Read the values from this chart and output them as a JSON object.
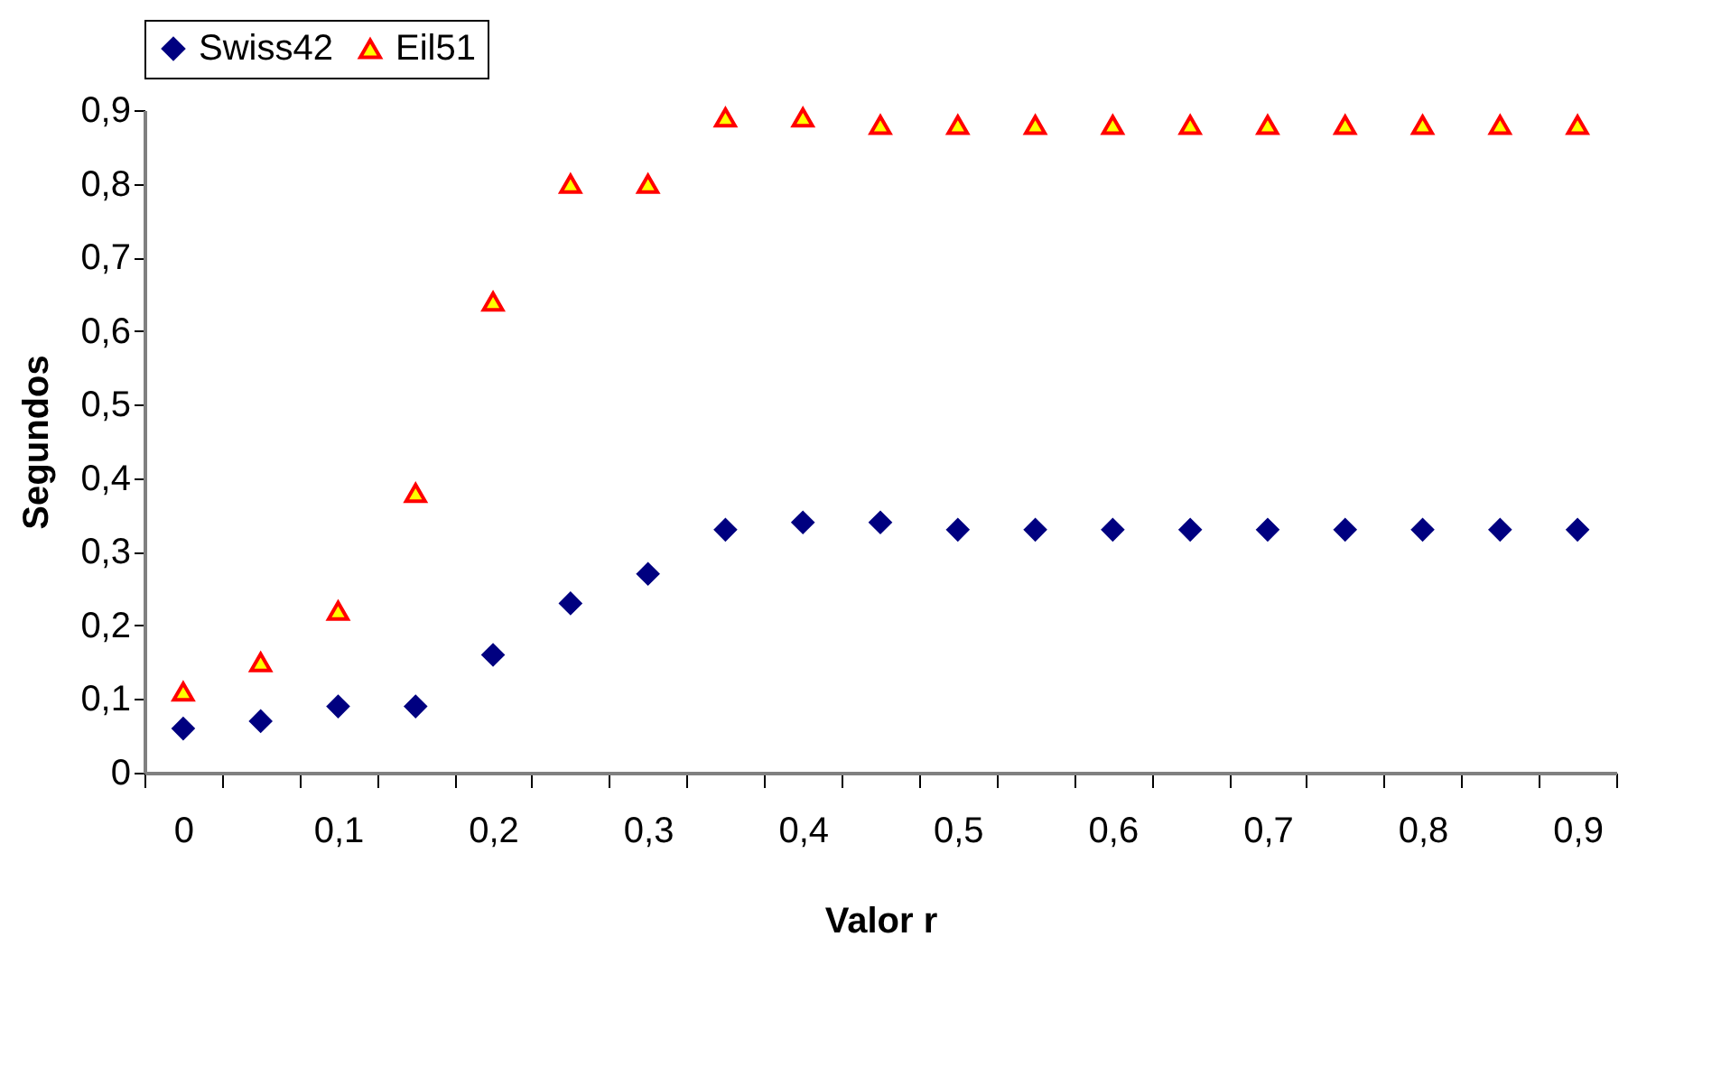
{
  "chart_data": {
    "type": "scatter",
    "xlabel": "Valor r",
    "ylabel": "Segundos",
    "categories": [
      "0",
      null,
      "0,1",
      null,
      "0,2",
      null,
      "0,3",
      null,
      "0,4",
      null,
      "0,5",
      null,
      "0,6",
      null,
      "0,7",
      null,
      "0,8",
      null,
      "0,9"
    ],
    "series": [
      {
        "name": "Swiss42",
        "color": "#000080",
        "marker": "diamond",
        "values": [
          0.06,
          0.07,
          0.09,
          0.09,
          0.16,
          0.23,
          0.27,
          0.33,
          0.34,
          0.34,
          0.33,
          0.33,
          0.33,
          0.33,
          0.33,
          0.33,
          0.33,
          0.33,
          0.33
        ]
      },
      {
        "name": "Eil51",
        "color": "#ffff00",
        "marker": "triangle",
        "values": [
          0.11,
          0.15,
          0.22,
          0.38,
          0.64,
          0.8,
          0.8,
          0.89,
          0.89,
          0.88,
          0.88,
          0.88,
          0.88,
          0.88,
          0.88,
          0.88,
          0.88,
          0.88,
          0.88
        ]
      }
    ],
    "ylim": [
      0,
      0.9
    ],
    "yticks": [
      {
        "value": 0,
        "label": "0"
      },
      {
        "value": 0.1,
        "label": "0,1"
      },
      {
        "value": 0.2,
        "label": "0,2"
      },
      {
        "value": 0.3,
        "label": "0,3"
      },
      {
        "value": 0.4,
        "label": "0,4"
      },
      {
        "value": 0.5,
        "label": "0,5"
      },
      {
        "value": 0.6,
        "label": "0,6"
      },
      {
        "value": 0.7,
        "label": "0,7"
      },
      {
        "value": 0.8,
        "label": "0,8"
      },
      {
        "value": 0.9,
        "label": "0,9"
      }
    ],
    "legend": "top",
    "grid": false
  }
}
